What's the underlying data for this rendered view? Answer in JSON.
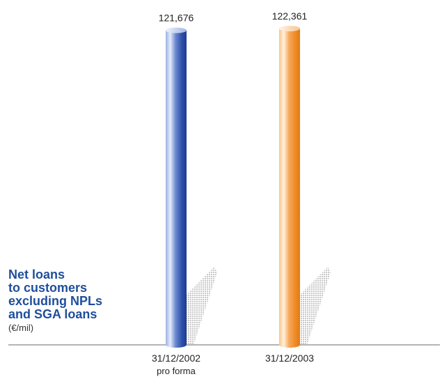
{
  "chart_data": {
    "type": "bar",
    "title_lines": [
      "Net loans",
      "to customers",
      "excluding NPLs",
      "and SGA loans"
    ],
    "unit": "(€/mil)",
    "categories": [
      {
        "label": "31/12/2002",
        "sublabel": "pro forma"
      },
      {
        "label": "31/12/2003",
        "sublabel": ""
      }
    ],
    "values": [
      121676,
      122361
    ],
    "value_labels": [
      "121,676",
      "122,361"
    ],
    "bar_colors": [
      "#3a5fb8",
      "#f0922e"
    ],
    "xlabel": "",
    "ylabel": "",
    "ylim": [
      0,
      122361
    ],
    "grid": false,
    "legend": "none"
  }
}
